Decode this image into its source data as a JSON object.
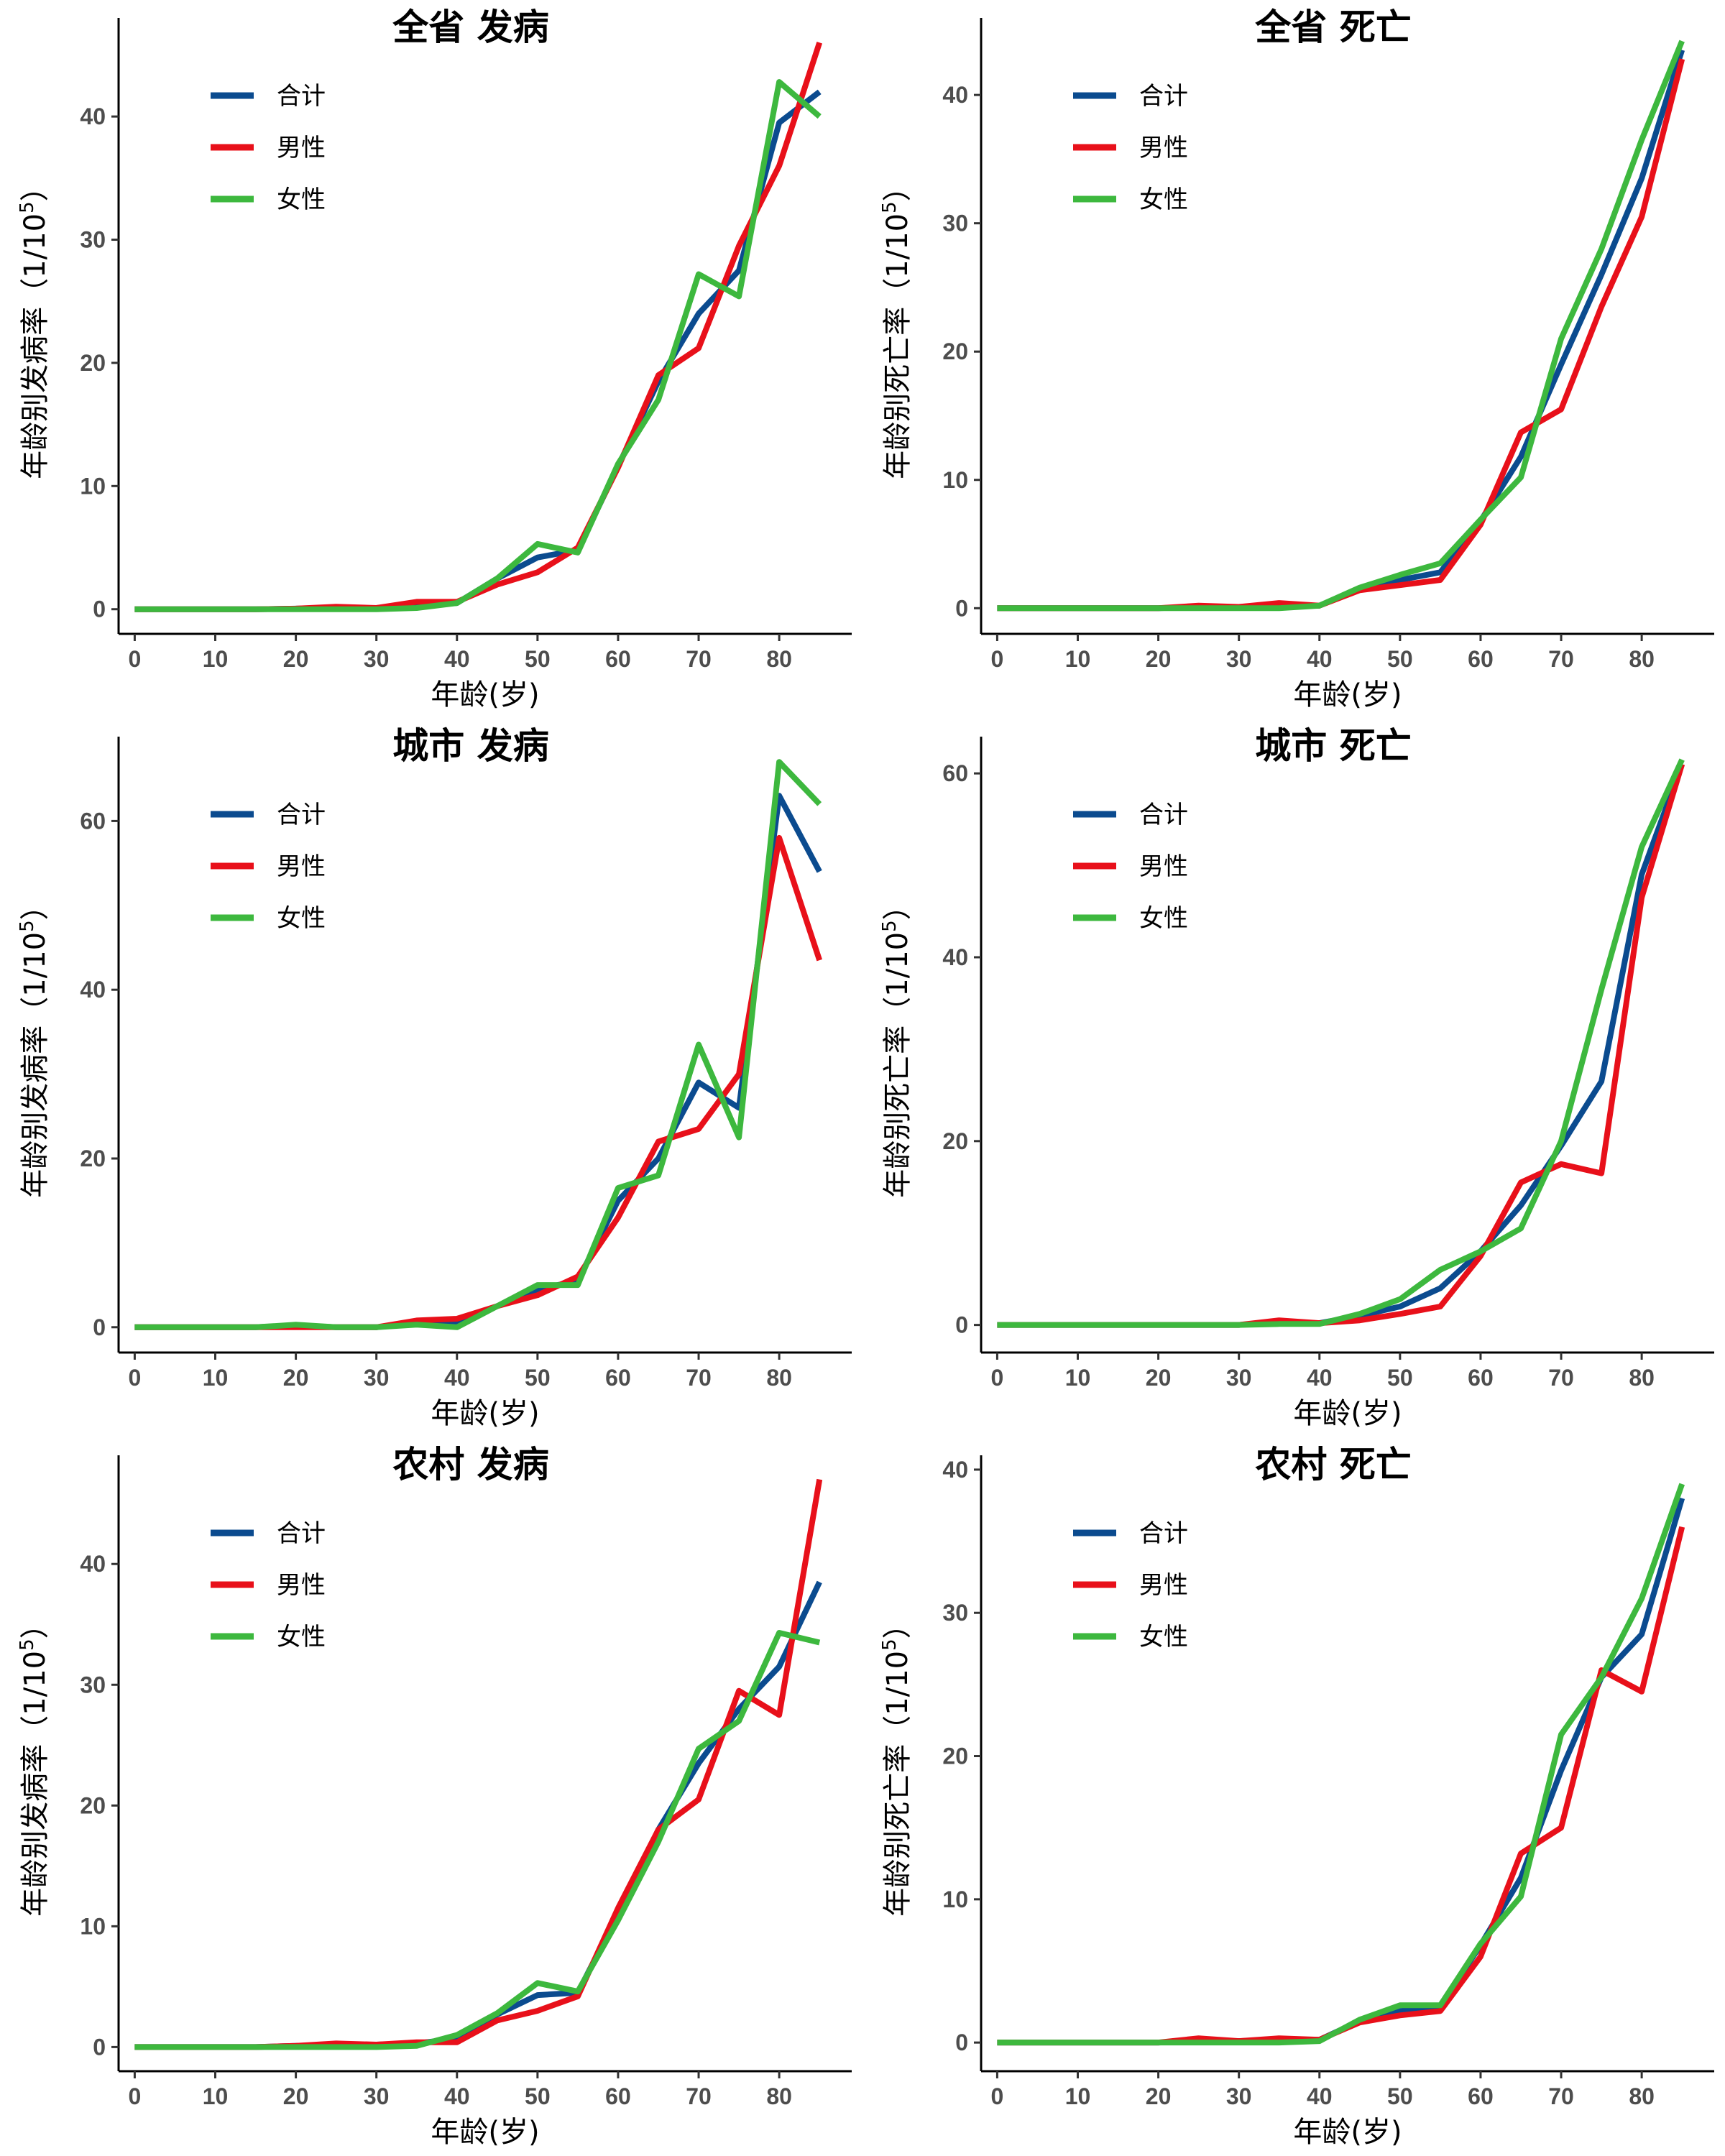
{
  "chart_data": [
    {
      "type": "line",
      "title": "全省 发病",
      "xlabel": "年龄(岁)",
      "ylabel_main": "年龄别发病率",
      "ylabel_unit": "（1/10",
      "ylabel_exp": "5",
      "ylabel_close": "）",
      "xlim": [
        -2,
        89
      ],
      "ylim": [
        -2,
        48
      ],
      "xticks": [
        0,
        10,
        20,
        30,
        40,
        50,
        60,
        70,
        80
      ],
      "yticks": [
        0,
        10,
        20,
        30,
        40
      ],
      "legend_position": "top-left",
      "x": [
        0,
        5,
        10,
        15,
        20,
        25,
        30,
        35,
        40,
        45,
        50,
        55,
        60,
        65,
        70,
        75,
        80,
        85
      ],
      "series": [
        {
          "name": "合计",
          "color": "#0b4b8f",
          "values": [
            0,
            0,
            0,
            0,
            0.05,
            0.1,
            0.1,
            0.3,
            0.5,
            2.5,
            4.2,
            4.8,
            11.6,
            18.5,
            24.0,
            27.5,
            39.5,
            42.0
          ]
        },
        {
          "name": "男性",
          "color": "#e8101a",
          "values": [
            0,
            0,
            0,
            0,
            0.05,
            0.2,
            0.1,
            0.6,
            0.6,
            2.0,
            3.0,
            5.0,
            11.5,
            19.0,
            21.2,
            29.5,
            36.0,
            46.0
          ]
        },
        {
          "name": "女性",
          "color": "#3db83e",
          "values": [
            0,
            0,
            0,
            0,
            0,
            0,
            0,
            0.1,
            0.5,
            2.5,
            5.3,
            4.6,
            11.8,
            17.0,
            27.2,
            25.4,
            42.8,
            40.0
          ]
        }
      ]
    },
    {
      "type": "line",
      "title": "全省 死亡",
      "xlabel": "年龄(岁)",
      "ylabel_main": "年龄别死亡率",
      "ylabel_unit": "（1/10",
      "ylabel_exp": "5",
      "ylabel_close": "）",
      "xlim": [
        -2,
        89
      ],
      "ylim": [
        -2,
        46
      ],
      "xticks": [
        0,
        10,
        20,
        30,
        40,
        50,
        60,
        70,
        80
      ],
      "yticks": [
        0,
        10,
        20,
        30,
        40
      ],
      "legend_position": "top-left",
      "x": [
        0,
        5,
        10,
        15,
        20,
        25,
        30,
        35,
        40,
        45,
        50,
        55,
        60,
        65,
        70,
        75,
        80,
        85
      ],
      "series": [
        {
          "name": "合计",
          "color": "#0b4b8f",
          "values": [
            0,
            0,
            0,
            0,
            0,
            0.1,
            0.1,
            0.2,
            0.2,
            1.5,
            2.2,
            2.8,
            6.8,
            11.8,
            19.0,
            26.0,
            33.5,
            43.5
          ]
        },
        {
          "name": "男性",
          "color": "#e8101a",
          "values": [
            0,
            0,
            0,
            0,
            0,
            0.2,
            0.1,
            0.4,
            0.2,
            1.4,
            1.8,
            2.2,
            6.5,
            13.7,
            15.5,
            23.5,
            30.5,
            42.8
          ]
        },
        {
          "name": "女性",
          "color": "#3db83e",
          "values": [
            0,
            0,
            0,
            0,
            0,
            0,
            0,
            0,
            0.2,
            1.6,
            2.6,
            3.5,
            6.9,
            10.2,
            21.0,
            28.0,
            36.5,
            44.2
          ]
        }
      ]
    },
    {
      "type": "line",
      "title": "城市 发病",
      "xlabel": "年龄(岁)",
      "ylabel_main": "年龄别发病率",
      "ylabel_unit": "（1/10",
      "ylabel_exp": "5",
      "ylabel_close": "）",
      "xlim": [
        -2,
        89
      ],
      "ylim": [
        -3,
        70
      ],
      "xticks": [
        0,
        10,
        20,
        30,
        40,
        50,
        60,
        70,
        80
      ],
      "yticks": [
        0,
        20,
        40,
        60
      ],
      "legend_position": "top-left",
      "x": [
        0,
        5,
        10,
        15,
        20,
        25,
        30,
        35,
        40,
        45,
        50,
        55,
        60,
        65,
        70,
        75,
        80,
        85
      ],
      "series": [
        {
          "name": "合计",
          "color": "#0b4b8f",
          "values": [
            0,
            0,
            0,
            0,
            0.2,
            0,
            0,
            0.5,
            0.5,
            2.5,
            4.5,
            5.5,
            15.0,
            20.0,
            29.0,
            26.0,
            63.0,
            54.0
          ]
        },
        {
          "name": "男性",
          "color": "#e8101a",
          "values": [
            0,
            0,
            0,
            0,
            0,
            0,
            0,
            0.8,
            1.0,
            2.5,
            3.8,
            6.0,
            13.0,
            22.0,
            23.5,
            30.0,
            58.0,
            43.5
          ]
        },
        {
          "name": "女性",
          "color": "#3db83e",
          "values": [
            0,
            0,
            0,
            0,
            0.3,
            0,
            0,
            0.3,
            0,
            2.5,
            5.0,
            5.0,
            16.5,
            18.0,
            33.5,
            22.5,
            67.0,
            62.0
          ]
        }
      ]
    },
    {
      "type": "line",
      "title": "城市 死亡",
      "xlabel": "年龄(岁)",
      "ylabel_main": "年龄别死亡率",
      "ylabel_unit": "（1/10",
      "ylabel_exp": "5",
      "ylabel_close": "）",
      "xlim": [
        -2,
        89
      ],
      "ylim": [
        -3,
        64
      ],
      "xticks": [
        0,
        10,
        20,
        30,
        40,
        50,
        60,
        70,
        80
      ],
      "yticks": [
        0,
        20,
        40,
        60
      ],
      "legend_position": "top-left",
      "x": [
        0,
        5,
        10,
        15,
        20,
        25,
        30,
        35,
        40,
        45,
        50,
        55,
        60,
        65,
        70,
        75,
        80,
        85
      ],
      "series": [
        {
          "name": "合计",
          "color": "#0b4b8f",
          "values": [
            0,
            0,
            0,
            0,
            0,
            0,
            0,
            0.3,
            0.2,
            1.0,
            2.0,
            4.0,
            8.0,
            13.0,
            19.5,
            26.5,
            49.0,
            61.0
          ]
        },
        {
          "name": "男性",
          "color": "#e8101a",
          "values": [
            0,
            0,
            0,
            0,
            0,
            0,
            0,
            0.5,
            0.2,
            0.5,
            1.2,
            2.0,
            7.5,
            15.5,
            17.5,
            16.5,
            46.5,
            61.0
          ]
        },
        {
          "name": "女性",
          "color": "#3db83e",
          "values": [
            0,
            0,
            0,
            0,
            0,
            0,
            0,
            0.1,
            0.1,
            1.2,
            2.8,
            6.0,
            8.0,
            10.5,
            20.0,
            36.5,
            52.0,
            61.5
          ]
        }
      ]
    },
    {
      "type": "line",
      "title": "农村 发病",
      "xlabel": "年龄(岁)",
      "ylabel_main": "年龄别发病率",
      "ylabel_unit": "（1/10",
      "ylabel_exp": "5",
      "ylabel_close": "）",
      "xlim": [
        -2,
        89
      ],
      "ylim": [
        -2,
        49
      ],
      "xticks": [
        0,
        10,
        20,
        30,
        40,
        50,
        60,
        70,
        80
      ],
      "yticks": [
        0,
        10,
        20,
        30,
        40
      ],
      "legend_position": "top-left",
      "x": [
        0,
        5,
        10,
        15,
        20,
        25,
        30,
        35,
        40,
        45,
        50,
        55,
        60,
        65,
        70,
        75,
        80,
        85
      ],
      "series": [
        {
          "name": "合计",
          "color": "#0b4b8f",
          "values": [
            0,
            0,
            0,
            0,
            0.1,
            0.2,
            0.2,
            0.3,
            0.7,
            2.7,
            4.3,
            4.5,
            11.0,
            18.0,
            23.5,
            28.0,
            31.5,
            38.5
          ]
        },
        {
          "name": "男性",
          "color": "#e8101a",
          "values": [
            0,
            0,
            0,
            0,
            0.1,
            0.3,
            0.2,
            0.4,
            0.4,
            2.2,
            3.0,
            4.2,
            11.5,
            18.0,
            20.5,
            29.5,
            27.5,
            47.0
          ]
        },
        {
          "name": "女性",
          "color": "#3db83e",
          "values": [
            0,
            0,
            0,
            0,
            0,
            0,
            0,
            0.1,
            1.0,
            2.8,
            5.3,
            4.6,
            10.5,
            17.0,
            24.7,
            27.0,
            34.3,
            33.5
          ]
        }
      ]
    },
    {
      "type": "line",
      "title": "农村 死亡",
      "xlabel": "年龄(岁)",
      "ylabel_main": "年龄别死亡率",
      "ylabel_unit": "（1/10",
      "ylabel_exp": "5",
      "ylabel_close": "）",
      "xlim": [
        -2,
        89
      ],
      "ylim": [
        -2,
        41
      ],
      "xticks": [
        0,
        10,
        20,
        30,
        40,
        50,
        60,
        70,
        80
      ],
      "yticks": [
        0,
        10,
        20,
        30,
        40
      ],
      "legend_position": "top-left",
      "x": [
        0,
        5,
        10,
        15,
        20,
        25,
        30,
        35,
        40,
        45,
        50,
        55,
        60,
        65,
        70,
        75,
        80,
        85
      ],
      "series": [
        {
          "name": "合计",
          "color": "#0b4b8f",
          "values": [
            0,
            0,
            0,
            0,
            0,
            0.1,
            0.1,
            0.2,
            0.2,
            1.5,
            2.2,
            2.5,
            6.8,
            11.5,
            19.0,
            25.5,
            28.5,
            38.0
          ]
        },
        {
          "name": "男性",
          "color": "#e8101a",
          "values": [
            0,
            0,
            0,
            0,
            0,
            0.3,
            0.1,
            0.3,
            0.2,
            1.4,
            1.9,
            2.2,
            6.0,
            13.2,
            15.0,
            26.0,
            24.5,
            36.0
          ]
        },
        {
          "name": "女性",
          "color": "#3db83e",
          "values": [
            0,
            0,
            0,
            0,
            0,
            0,
            0,
            0,
            0.1,
            1.6,
            2.6,
            2.6,
            6.9,
            10.2,
            21.5,
            25.5,
            31.0,
            39.0
          ]
        }
      ]
    }
  ]
}
